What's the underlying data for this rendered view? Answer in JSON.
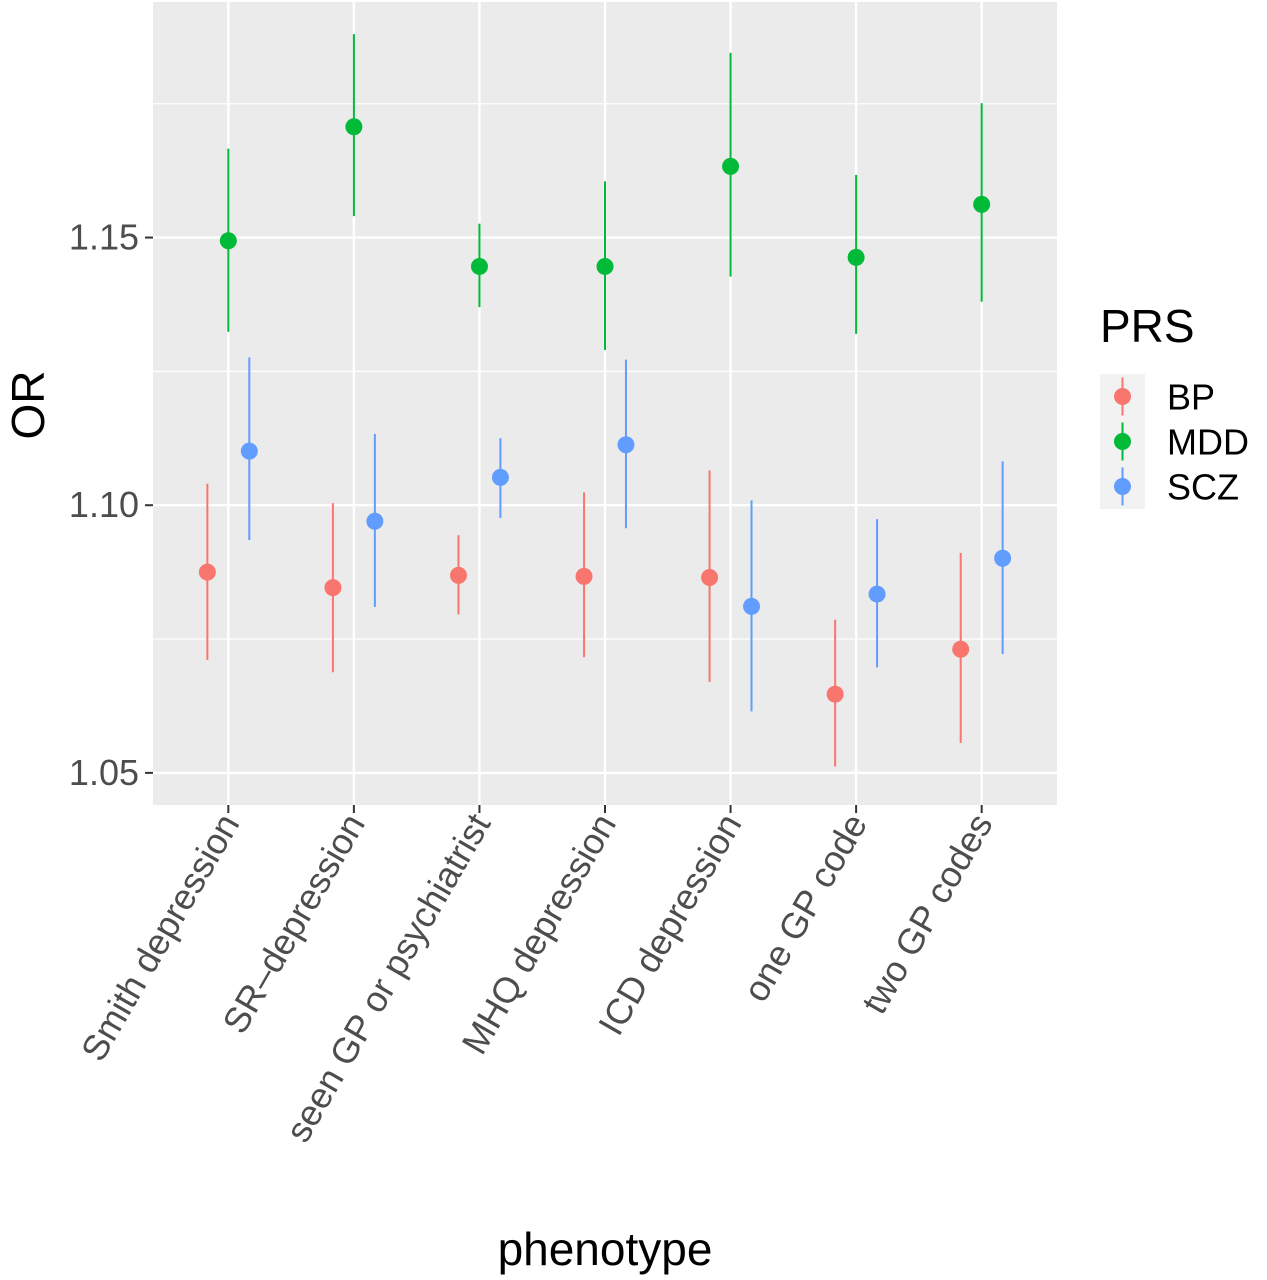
{
  "chart_data": {
    "type": "scatter",
    "subtype": "pointrange",
    "xlabel": "phenotype",
    "ylabel": "OR",
    "ylim": [
      1.044,
      1.194
    ],
    "yticks": [
      1.05,
      1.1,
      1.15
    ],
    "ytick_labels": [
      "1.05",
      "1.10",
      "1.15"
    ],
    "grid": true,
    "categories": [
      "Smith depression",
      "SR–depression",
      "seen GP or psychiatrist",
      "MHQ depression",
      "ICD depression",
      "one GP code",
      "two GP codes"
    ],
    "legend": {
      "title": "PRS",
      "position": "right"
    },
    "series": [
      {
        "name": "BP",
        "color": "#F8766D",
        "values": [
          1.0875,
          1.0846,
          1.0869,
          1.0867,
          1.0865,
          1.0647,
          1.0731
        ],
        "lower": [
          1.0711,
          1.0688,
          1.0796,
          1.0716,
          1.067,
          1.0512,
          1.0556
        ],
        "upper": [
          1.104,
          1.1004,
          1.0944,
          1.1024,
          1.1065,
          1.0786,
          1.0911
        ]
      },
      {
        "name": "MDD",
        "color": "#00BA38",
        "values": [
          1.1494,
          1.1707,
          1.1446,
          1.1446,
          1.1633,
          1.1463,
          1.1562
        ],
        "lower": [
          1.1324,
          1.154,
          1.137,
          1.129,
          1.1427,
          1.132,
          1.138
        ],
        "upper": [
          1.1666,
          1.188,
          1.1526,
          1.1605,
          1.1845,
          1.1617,
          1.1751
        ]
      },
      {
        "name": "SCZ",
        "color": "#619CFF",
        "values": [
          1.1101,
          1.097,
          1.1052,
          1.1113,
          1.0811,
          1.0834,
          1.0901
        ],
        "lower": [
          1.0935,
          1.081,
          1.0976,
          1.0957,
          1.0615,
          1.0697,
          1.0722
        ],
        "upper": [
          1.1276,
          1.1133,
          1.1125,
          1.1272,
          1.1009,
          1.0974,
          1.1082
        ]
      }
    ]
  }
}
